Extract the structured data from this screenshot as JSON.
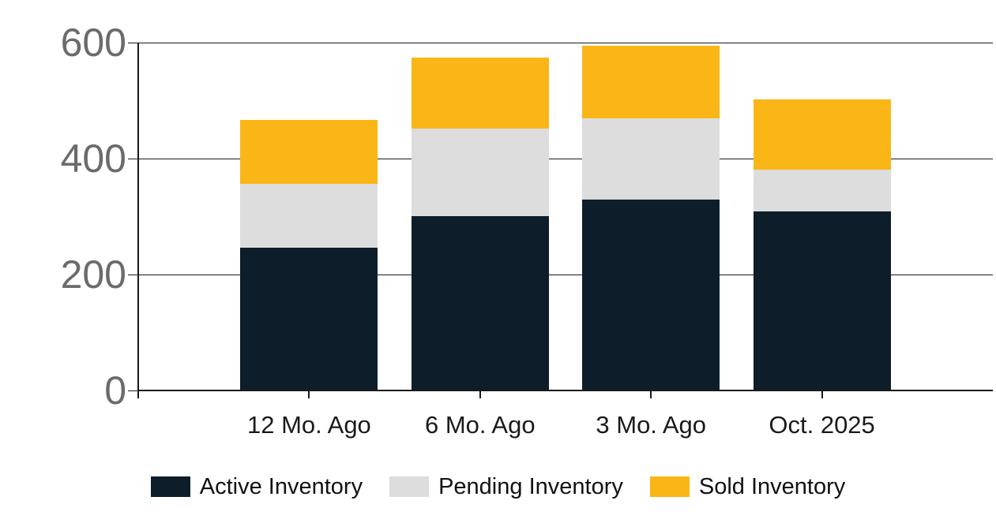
{
  "chart_data": {
    "type": "bar",
    "stacked": true,
    "title": "",
    "xlabel": "",
    "ylabel": "",
    "categories": [
      "12 Mo. Ago",
      "6 Mo. Ago",
      "3 Mo. Ago",
      "Oct. 2025"
    ],
    "series": [
      {
        "name": "Active Inventory",
        "color": "#0d1e2a",
        "values": [
          245,
          300,
          328,
          307
        ]
      },
      {
        "name": "Pending Inventory",
        "color": "#dddddd",
        "values": [
          110,
          150,
          140,
          73
        ]
      },
      {
        "name": "Sold Inventory",
        "color": "#fab516",
        "values": [
          110,
          123,
          125,
          121
        ]
      }
    ],
    "stack_totals": [
      465,
      573,
      593,
      501
    ],
    "ylim": [
      0,
      600
    ],
    "yticks": [
      0,
      200,
      400,
      600
    ],
    "grid": true,
    "legend_position": "bottom"
  },
  "colors": {
    "axis": "#1a1a1a",
    "y_tick_label": "#6b6b6b",
    "x_tick_label": "#1a1a1a",
    "legend_text": "#111111",
    "background": "#ffffff"
  }
}
